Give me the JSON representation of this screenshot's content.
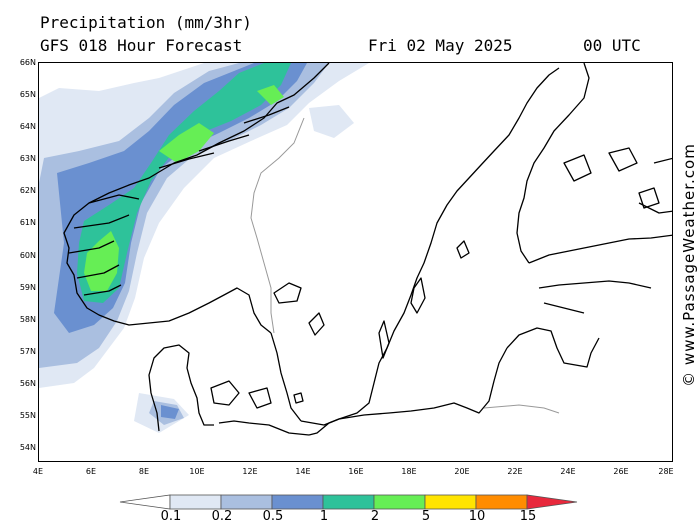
{
  "header": {
    "title": "Precipitation (mm/3hr)",
    "model_line": "GFS 018 Hour Forecast",
    "date": "Fri 02 May 2025",
    "time": "00 UTC"
  },
  "credit": "© www.PassageWeather.com",
  "map": {
    "lat_labels": [
      "66N",
      "65N",
      "64N",
      "63N",
      "62N",
      "61N",
      "60N",
      "59N",
      "58N",
      "57N",
      "56N",
      "55N",
      "54N"
    ],
    "lon_labels": [
      "4E",
      "6E",
      "8E",
      "10E",
      "12E",
      "14E",
      "16E",
      "18E",
      "20E",
      "22E",
      "24E",
      "26E",
      "28E"
    ],
    "land_color": "#ffffff",
    "coast_color": "#000000",
    "border_color": "#999999"
  },
  "legend": {
    "labels": [
      "0.1",
      "0.2",
      "0.5",
      "1",
      "2",
      "5",
      "10",
      "15"
    ],
    "colors": [
      "#ffffff",
      "#e0e8f4",
      "#aabfe0",
      "#6a90d0",
      "#2ec29a",
      "#66ee55",
      "#ffe400",
      "#ff8c00",
      "#e8283c"
    ]
  }
}
